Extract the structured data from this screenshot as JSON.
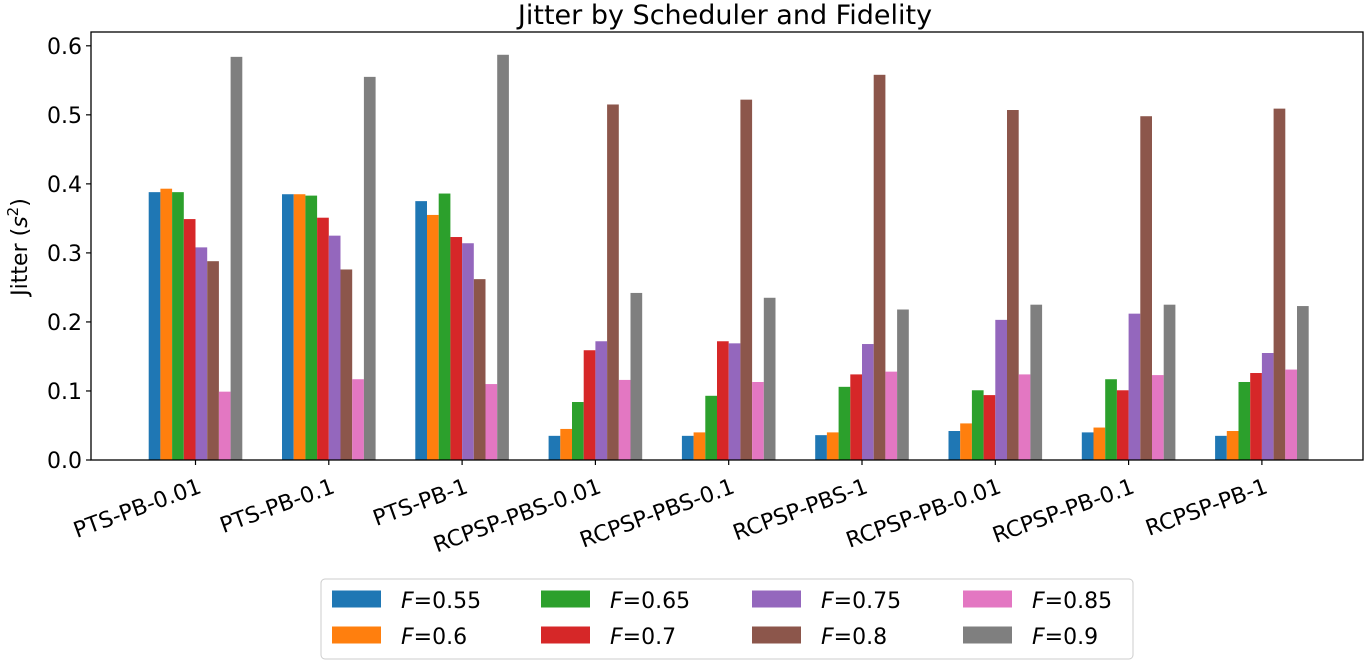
{
  "chart_data": {
    "type": "bar",
    "title": "Jitter by Scheduler and Fidelity",
    "xlabel": "",
    "ylabel": {
      "prefix": "Jitter (",
      "base": "s",
      "sup": "2",
      "suffix": ")"
    },
    "ylim": [
      0,
      0.62
    ],
    "yticks": [
      0.0,
      0.1,
      0.2,
      0.3,
      0.4,
      0.5,
      0.6
    ],
    "ytick_labels": [
      "0.0",
      "0.1",
      "0.2",
      "0.3",
      "0.4",
      "0.5",
      "0.6"
    ],
    "grid": false,
    "legend_position": "bottom-center",
    "legend_columns": 4,
    "categories": [
      "PTS-PB-0.01",
      "PTS-PB-0.1",
      "PTS-PB-1",
      "RCPSP-PBS-0.01",
      "RCPSP-PBS-0.1",
      "RCPSP-PBS-1",
      "RCPSP-PB-0.01",
      "RCPSP-PB-0.1",
      "RCPSP-PB-1"
    ],
    "series": [
      {
        "name": "F=0.55",
        "legend_var": "F",
        "legend_value": "=0.55",
        "color": "#1f77b4",
        "values": [
          0.388,
          0.385,
          0.375,
          0.035,
          0.035,
          0.036,
          0.042,
          0.04,
          0.035
        ]
      },
      {
        "name": "F=0.6",
        "legend_var": "F",
        "legend_value": "=0.6",
        "color": "#ff7f0e",
        "values": [
          0.393,
          0.385,
          0.355,
          0.045,
          0.04,
          0.04,
          0.053,
          0.047,
          0.042
        ]
      },
      {
        "name": "F=0.65",
        "legend_var": "F",
        "legend_value": "=0.65",
        "color": "#2ca02c",
        "values": [
          0.388,
          0.383,
          0.386,
          0.084,
          0.093,
          0.106,
          0.101,
          0.117,
          0.113
        ]
      },
      {
        "name": "F=0.7",
        "legend_var": "F",
        "legend_value": "=0.7",
        "color": "#d62728",
        "values": [
          0.349,
          0.351,
          0.323,
          0.159,
          0.172,
          0.124,
          0.094,
          0.101,
          0.126
        ]
      },
      {
        "name": "F=0.75",
        "legend_var": "F",
        "legend_value": "=0.75",
        "color": "#9467bd",
        "values": [
          0.308,
          0.325,
          0.314,
          0.172,
          0.169,
          0.168,
          0.203,
          0.212,
          0.155
        ]
      },
      {
        "name": "F=0.8",
        "legend_var": "F",
        "legend_value": "=0.8",
        "color": "#8c564b",
        "values": [
          0.288,
          0.276,
          0.262,
          0.515,
          0.522,
          0.558,
          0.507,
          0.498,
          0.509
        ]
      },
      {
        "name": "F=0.85",
        "legend_var": "F",
        "legend_value": "=0.85",
        "color": "#e377c2",
        "values": [
          0.099,
          0.117,
          0.11,
          0.116,
          0.113,
          0.128,
          0.124,
          0.123,
          0.131
        ]
      },
      {
        "name": "F=0.9",
        "legend_var": "F",
        "legend_value": "=0.9",
        "color": "#7f7f7f",
        "values": [
          0.584,
          0.555,
          0.587,
          0.242,
          0.235,
          0.218,
          0.225,
          0.225,
          0.223
        ]
      }
    ]
  }
}
